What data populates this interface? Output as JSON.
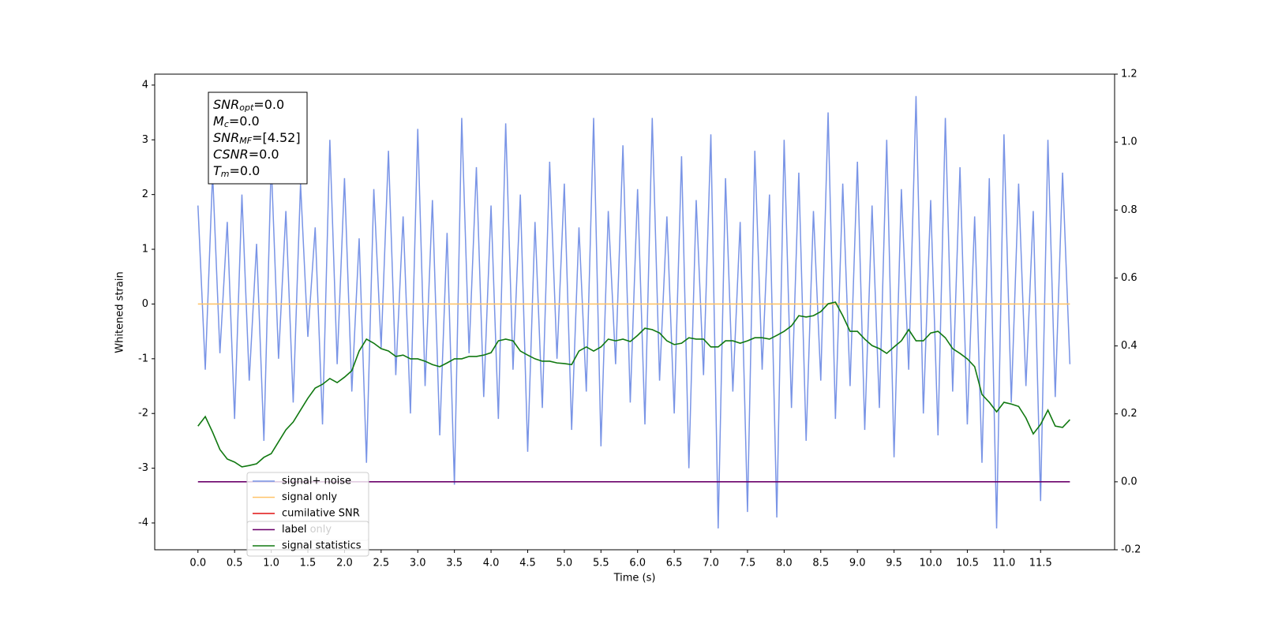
{
  "chart_data": {
    "type": "line",
    "xlabel": "Time (s)",
    "ylabel": "Whitened strain",
    "xlim": [
      -0.59,
      12.51
    ],
    "ylim": [
      -4.49,
      4.2
    ],
    "y2lim": [
      -0.2,
      1.2
    ],
    "xticks": [
      {
        "value": 0,
        "label": "0.0"
      },
      {
        "value": 0.5,
        "label": "0.5"
      },
      {
        "value": 1,
        "label": "1.0"
      },
      {
        "value": 1.5,
        "label": "1.5"
      },
      {
        "value": 2,
        "label": "2.0"
      },
      {
        "value": 2.5,
        "label": "2.5"
      },
      {
        "value": 3,
        "label": "3.0"
      },
      {
        "value": 3.5,
        "label": "3.5"
      },
      {
        "value": 4,
        "label": "4.0"
      },
      {
        "value": 4.5,
        "label": "4.5"
      },
      {
        "value": 5,
        "label": "5.0"
      },
      {
        "value": 5.5,
        "label": "5.5"
      },
      {
        "value": 6,
        "label": "6.0"
      },
      {
        "value": 6.5,
        "label": "6.5"
      },
      {
        "value": 7,
        "label": "7.0"
      },
      {
        "value": 7.5,
        "label": "7.5"
      },
      {
        "value": 8,
        "label": "8.0"
      },
      {
        "value": 8.5,
        "label": "8.5"
      },
      {
        "value": 9,
        "label": "9.0"
      },
      {
        "value": 9.5,
        "label": "9.5"
      },
      {
        "value": 10,
        "label": "10.0"
      },
      {
        "value": 10.5,
        "label": "10.5"
      },
      {
        "value": 11,
        "label": "11.0"
      },
      {
        "value": 11.5,
        "label": "11.5"
      }
    ],
    "yticks": [
      -4,
      -3,
      -2,
      -1,
      0,
      1,
      2,
      3,
      4
    ],
    "y2ticks": [
      -0.2,
      {
        "value": 0,
        "label": "0.0"
      },
      0.2,
      0.4,
      0.6,
      0.8,
      {
        "value": 1,
        "label": "1.0"
      },
      0.2,
      1.2
    ],
    "annotation_sep": "=",
    "annotations": [
      {
        "name": "SNR",
        "sub": "opt",
        "value": "0.0"
      },
      {
        "name": "M",
        "sub": "c",
        "value": "0.0"
      },
      {
        "name": "SNR",
        "sub": "MF",
        "value": "[4.52]"
      },
      {
        "name": "CSNR",
        "value": "0.0"
      },
      {
        "name": "T",
        "sub": "m",
        "value": "0.0"
      }
    ],
    "x": [
      0.0,
      0.1,
      0.2,
      0.3,
      0.4,
      0.5,
      0.6,
      0.7,
      0.8,
      0.9,
      1.0,
      1.1,
      1.2,
      1.3,
      1.4,
      1.5,
      1.6,
      1.7,
      1.8,
      1.9,
      2.0,
      2.1,
      2.2,
      2.3,
      2.4,
      2.5,
      2.6,
      2.7,
      2.8,
      2.9,
      3.0,
      3.1,
      3.2,
      3.3,
      3.4,
      3.5,
      3.6,
      3.7,
      3.8,
      3.9,
      4.0,
      4.1,
      4.2,
      4.3,
      4.4,
      4.5,
      4.6,
      4.7,
      4.8,
      4.9,
      5.0,
      5.1,
      5.2,
      5.3,
      5.4,
      5.5,
      5.6,
      5.7,
      5.8,
      5.9,
      6.0,
      6.1,
      6.2,
      6.3,
      6.4,
      6.5,
      6.6,
      6.7,
      6.8,
      6.9,
      7.0,
      7.1,
      7.2,
      7.3,
      7.4,
      7.5,
      7.6,
      7.7,
      7.8,
      7.9,
      8.0,
      8.1,
      8.2,
      8.3,
      8.4,
      8.5,
      8.6,
      8.7,
      8.8,
      8.9,
      9.0,
      9.1,
      9.2,
      9.3,
      9.4,
      9.5,
      9.6,
      9.7,
      9.8,
      9.9,
      10.0,
      10.1,
      10.2,
      10.3,
      10.4,
      10.5,
      10.6,
      10.7,
      10.8,
      10.9,
      11.0,
      11.1,
      11.2,
      11.3,
      11.4,
      11.5,
      11.6,
      11.7,
      11.8,
      11.9
    ],
    "series": [
      {
        "name": "signal+ noise",
        "color": "#7994e6",
        "values": [
          1.8,
          -1.2,
          2.4,
          -0.9,
          1.5,
          -2.1,
          2.0,
          -1.4,
          1.1,
          -2.5,
          2.6,
          -1.0,
          1.7,
          -1.8,
          2.2,
          -0.6,
          1.4,
          -2.2,
          3.0,
          -1.1,
          2.3,
          -1.6,
          1.2,
          -2.9,
          2.1,
          -0.8,
          2.8,
          -1.3,
          1.6,
          -2.0,
          3.2,
          -1.5,
          1.9,
          -2.4,
          1.3,
          -3.3,
          3.4,
          -0.9,
          2.5,
          -1.7,
          1.8,
          -2.1,
          3.3,
          -1.2,
          2.0,
          -2.7,
          1.5,
          -1.9,
          2.6,
          -1.0,
          2.2,
          -2.3,
          1.4,
          -1.6,
          3.4,
          -2.6,
          1.7,
          -1.1,
          2.9,
          -1.8,
          2.1,
          -2.2,
          3.4,
          -1.4,
          1.6,
          -2.0,
          2.7,
          -3.0,
          1.9,
          -1.3,
          3.1,
          -4.1,
          2.3,
          -1.6,
          1.5,
          -3.8,
          2.8,
          -1.2,
          2.0,
          -3.9,
          3.0,
          -1.9,
          2.4,
          -2.5,
          1.7,
          -1.4,
          3.5,
          -2.1,
          2.2,
          -1.5,
          2.6,
          -2.3,
          1.8,
          -1.9,
          3.0,
          -2.8,
          2.1,
          -1.2,
          3.8,
          -2.0,
          1.9,
          -2.4,
          3.4,
          -1.6,
          2.5,
          -2.2,
          1.6,
          -2.9,
          2.3,
          -4.1,
          3.1,
          -1.8,
          2.2,
          -1.5,
          1.7,
          -3.6,
          3.0,
          -1.7,
          2.4,
          -1.1
        ]
      },
      {
        "name": "signal only",
        "color": "#ffc46a",
        "values": [
          0,
          0,
          0,
          0,
          0,
          0,
          0,
          0,
          0,
          0,
          0,
          0,
          0,
          0,
          0,
          0,
          0,
          0,
          0,
          0,
          0,
          0,
          0,
          0,
          0,
          0,
          0,
          0,
          0,
          0,
          0,
          0,
          0,
          0,
          0,
          0,
          0,
          0,
          0,
          0,
          0,
          0,
          0,
          0,
          0,
          0,
          0,
          0,
          0,
          0,
          0,
          0,
          0,
          0,
          0,
          0,
          0,
          0,
          0,
          0,
          0,
          0,
          0,
          0,
          0,
          0,
          0,
          0,
          0,
          0,
          0,
          0,
          0,
          0,
          0,
          0,
          0,
          0,
          0,
          0,
          0,
          0,
          0,
          0,
          0,
          0,
          0,
          0,
          0,
          0,
          0,
          0,
          0,
          0,
          0,
          0,
          0,
          0,
          0,
          0,
          0,
          0,
          0,
          0,
          0,
          0,
          0,
          0,
          0,
          0,
          0,
          0,
          0,
          0,
          0,
          0,
          0,
          0,
          0,
          0
        ]
      },
      {
        "name": "cumilative SNR",
        "color": "#e01010"
      },
      {
        "name": "label only",
        "color": "#7b007b"
      },
      {
        "name": "label",
        "color": "#6a006a",
        "axis": "y2",
        "values": [
          0,
          0,
          0,
          0,
          0,
          0,
          0,
          0,
          0,
          0,
          0,
          0,
          0,
          0,
          0,
          0,
          0,
          0,
          0,
          0,
          0,
          0,
          0,
          0,
          0,
          0,
          0,
          0,
          0,
          0,
          0,
          0,
          0,
          0,
          0,
          0,
          0,
          0,
          0,
          0,
          0,
          0,
          0,
          0,
          0,
          0,
          0,
          0,
          0,
          0,
          0,
          0,
          0,
          0,
          0,
          0,
          0,
          0,
          0,
          0,
          0,
          0,
          0,
          0,
          0,
          0,
          0,
          0,
          0,
          0,
          0,
          0,
          0,
          0,
          0,
          0,
          0,
          0,
          0,
          0,
          0,
          0,
          0,
          0,
          0,
          0,
          0,
          0,
          0,
          0,
          0,
          0,
          0,
          0,
          0,
          0,
          0,
          0,
          0,
          0,
          0,
          0,
          0,
          0,
          0,
          0,
          0,
          0,
          0,
          0,
          0,
          0,
          0,
          0,
          0,
          0,
          0,
          0,
          0,
          0
        ]
      },
      {
        "name": "signal statistics",
        "color": "#107810",
        "axis": "y2",
        "values": [
          0.164,
          0.192,
          0.146,
          0.095,
          0.067,
          0.058,
          0.044,
          0.048,
          0.053,
          0.072,
          0.083,
          0.118,
          0.153,
          0.176,
          0.211,
          0.246,
          0.276,
          0.287,
          0.304,
          0.292,
          0.308,
          0.327,
          0.385,
          0.42,
          0.408,
          0.392,
          0.385,
          0.369,
          0.373,
          0.362,
          0.362,
          0.355,
          0.345,
          0.339,
          0.35,
          0.362,
          0.362,
          0.369,
          0.369,
          0.373,
          0.38,
          0.415,
          0.42,
          0.415,
          0.385,
          0.373,
          0.362,
          0.355,
          0.355,
          0.35,
          0.348,
          0.345,
          0.385,
          0.397,
          0.385,
          0.397,
          0.42,
          0.415,
          0.42,
          0.413,
          0.431,
          0.452,
          0.448,
          0.438,
          0.415,
          0.404,
          0.408,
          0.424,
          0.42,
          0.42,
          0.397,
          0.397,
          0.415,
          0.415,
          0.408,
          0.415,
          0.424,
          0.424,
          0.42,
          0.431,
          0.443,
          0.459,
          0.489,
          0.485,
          0.489,
          0.501,
          0.524,
          0.529,
          0.489,
          0.443,
          0.443,
          0.42,
          0.401,
          0.392,
          0.378,
          0.397,
          0.415,
          0.448,
          0.415,
          0.415,
          0.438,
          0.443,
          0.424,
          0.392,
          0.378,
          0.362,
          0.339,
          0.257,
          0.234,
          0.206,
          0.234,
          0.229,
          0.222,
          0.188,
          0.141,
          0.169,
          0.211,
          0.164,
          0.16,
          0.183
        ]
      }
    ]
  }
}
